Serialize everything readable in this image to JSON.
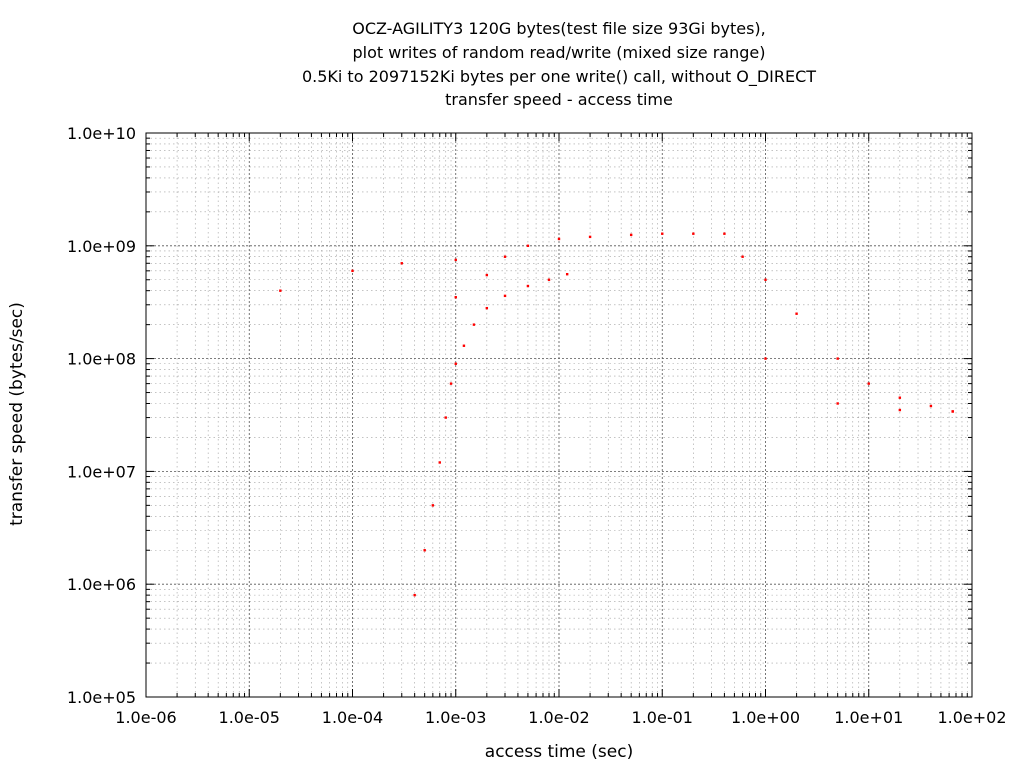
{
  "chart_data": {
    "type": "scatter",
    "title_lines": [
      "OCZ-AGILITY3 120G bytes(test file size 93Gi bytes),",
      "plot writes of random read/write (mixed size range)",
      "0.5Ki to 2097152Ki bytes per one write() call, without O_DIRECT",
      "transfer speed - access time"
    ],
    "xlabel": "access time (sec)",
    "ylabel": "transfer speed (bytes/sec)",
    "x_scale": "log",
    "y_scale": "log",
    "xlim": [
      1e-06,
      100
    ],
    "ylim": [
      100000.0,
      10000000000.0
    ],
    "x_ticks": [
      {
        "value": 1e-06,
        "label": "1.0e-06"
      },
      {
        "value": 1e-05,
        "label": "1.0e-05"
      },
      {
        "value": 0.0001,
        "label": "1.0e-04"
      },
      {
        "value": 0.001,
        "label": "1.0e-03"
      },
      {
        "value": 0.01,
        "label": "1.0e-02"
      },
      {
        "value": 0.1,
        "label": "1.0e-01"
      },
      {
        "value": 1,
        "label": "1.0e+00"
      },
      {
        "value": 10,
        "label": "1.0e+01"
      },
      {
        "value": 100,
        "label": "1.0e+02"
      }
    ],
    "y_ticks": [
      {
        "value": 100000.0,
        "label": "1.0e+05"
      },
      {
        "value": 1000000.0,
        "label": "1.0e+06"
      },
      {
        "value": 10000000.0,
        "label": "1.0e+07"
      },
      {
        "value": 100000000.0,
        "label": "1.0e+08"
      },
      {
        "value": 1000000000.0,
        "label": "1.0e+09"
      },
      {
        "value": 10000000000.0,
        "label": "1.0e+10"
      }
    ],
    "grid": true,
    "marker_color": "#ff0000",
    "series": [
      {
        "points": [
          [
            0.0004,
            800000.0
          ],
          [
            0.0005,
            2000000.0
          ],
          [
            0.0006,
            5000000.0
          ],
          [
            0.0007,
            12000000.0
          ],
          [
            0.0008,
            30000000.0
          ],
          [
            0.0009,
            60000000.0
          ],
          [
            0.001,
            90000000.0
          ],
          [
            0.0012,
            130000000.0
          ],
          [
            0.0015,
            200000000.0
          ],
          [
            0.002,
            280000000.0
          ],
          [
            0.003,
            360000000.0
          ],
          [
            0.005,
            440000000.0
          ],
          [
            0.008,
            500000000.0
          ],
          [
            0.012,
            560000000.0
          ],
          [
            0.001,
            350000000.0
          ],
          [
            0.002,
            550000000.0
          ],
          [
            0.003,
            800000000.0
          ],
          [
            0.005,
            1000000000.0
          ],
          [
            0.01,
            1150000000.0
          ],
          [
            0.02,
            1200000000.0
          ],
          [
            0.05,
            1250000000.0
          ],
          [
            0.1,
            1280000000.0
          ],
          [
            0.2,
            1280000000.0
          ],
          [
            0.4,
            1280000000.0
          ],
          [
            0.6,
            800000000.0
          ],
          [
            1.0,
            500000000.0
          ],
          [
            2.0,
            250000000.0
          ],
          [
            5.0,
            100000000.0
          ],
          [
            10.0,
            60000000.0
          ],
          [
            20.0,
            45000000.0
          ],
          [
            40.0,
            38000000.0
          ],
          [
            65.0,
            34000000.0
          ],
          [
            1.0,
            100000000.0
          ],
          [
            5.0,
            40000000.0
          ],
          [
            20.0,
            35000000.0
          ],
          [
            65.0,
            34000000.0
          ],
          [
            0.0001,
            600000000.0
          ],
          [
            0.0003,
            700000000.0
          ],
          [
            0.001,
            750000000.0
          ],
          [
            2e-05,
            400000000.0
          ]
        ]
      }
    ]
  }
}
